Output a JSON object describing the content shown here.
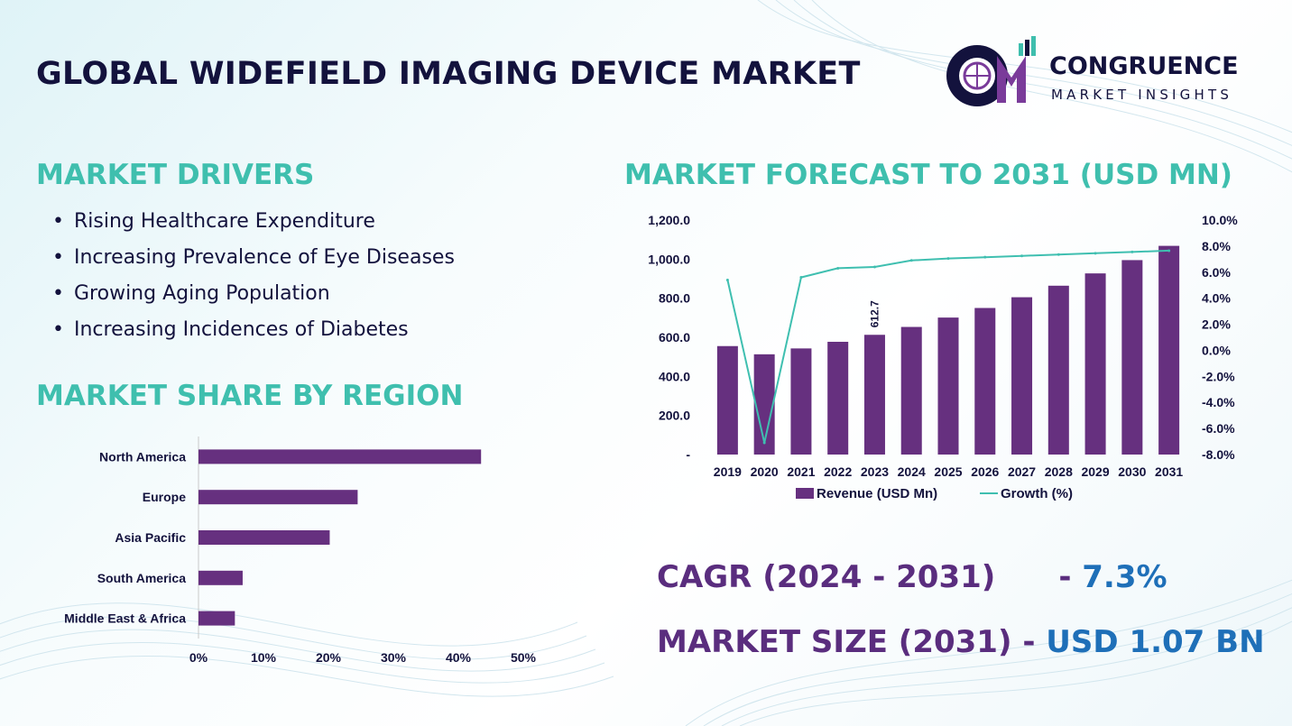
{
  "header": {
    "title": "GLOBAL WIDEFIELD IMAGING DEVICE MARKET",
    "logo_name": "CONGRUENCE",
    "logo_subtitle": "MARKET INSIGHTS"
  },
  "drivers": {
    "heading": "MARKET DRIVERS",
    "bullet": "•",
    "items": [
      "Rising Healthcare Expenditure",
      "Increasing Prevalence of Eye Diseases",
      "Growing Aging Population",
      "Increasing Incidences of Diabetes"
    ]
  },
  "region": {
    "heading": "MARKET SHARE BY REGION"
  },
  "forecast": {
    "heading": "MARKET FORECAST TO 2031 (USD MN)"
  },
  "stats": {
    "cagr_label": "CAGR (2024 - 2031)",
    "cagr_dash": "- ",
    "cagr_value": "7.3%",
    "size_label": "MARKET SIZE (2031)",
    "size_dash": " - ",
    "size_value": "USD 1.07 BN"
  },
  "colors": {
    "bar": "#66307f",
    "line": "#3fbfb0",
    "heading": "#3fbfae",
    "title": "#13123d",
    "stat_label": "#5a2d7e",
    "stat_value": "#1e6fb8"
  },
  "chart_data": [
    {
      "type": "bar",
      "orientation": "horizontal",
      "categories": [
        "North America",
        "Europe",
        "Asia Pacific",
        "South America",
        "Middle East & Africa"
      ],
      "values": [
        43.5,
        24.5,
        20.2,
        6.8,
        5.6
      ],
      "unit": "%",
      "xlim": [
        0,
        50
      ],
      "xticks": [
        "0%",
        "10%",
        "20%",
        "30%",
        "40%",
        "50%"
      ],
      "grid": false,
      "legend": "none"
    },
    {
      "type": "bar",
      "combo": "bar+line",
      "categories": [
        "2019",
        "2020",
        "2021",
        "2022",
        "2023",
        "2024",
        "2025",
        "2026",
        "2027",
        "2028",
        "2029",
        "2030",
        "2031"
      ],
      "series": [
        {
          "name": "Revenue (USD Mn)",
          "type": "bar",
          "axis": "left",
          "values": [
            555,
            513,
            543,
            577,
            612.7,
            653,
            701,
            750,
            805,
            864,
            927,
            995,
            1068
          ]
        },
        {
          "name": "Growth (%)",
          "type": "line",
          "axis": "right",
          "values": [
            5.4,
            -7.1,
            5.6,
            6.3,
            6.4,
            6.9,
            7.05,
            7.15,
            7.25,
            7.35,
            7.45,
            7.55,
            7.65
          ]
        }
      ],
      "data_labels": [
        {
          "category": "2023",
          "text": "612.7"
        }
      ],
      "ylim_left": [
        0,
        1200
      ],
      "yticks_left": [
        "-",
        "200.0",
        "400.0",
        "600.0",
        "800.0",
        "1,000.0",
        "1,200.0"
      ],
      "ylim_right": [
        -8,
        10
      ],
      "yticks_right": [
        "-8.0%",
        "-6.0%",
        "-4.0%",
        "-2.0%",
        "0.0%",
        "2.0%",
        "4.0%",
        "6.0%",
        "8.0%",
        "10.0%"
      ],
      "grid": false,
      "legend": "bottom"
    }
  ]
}
